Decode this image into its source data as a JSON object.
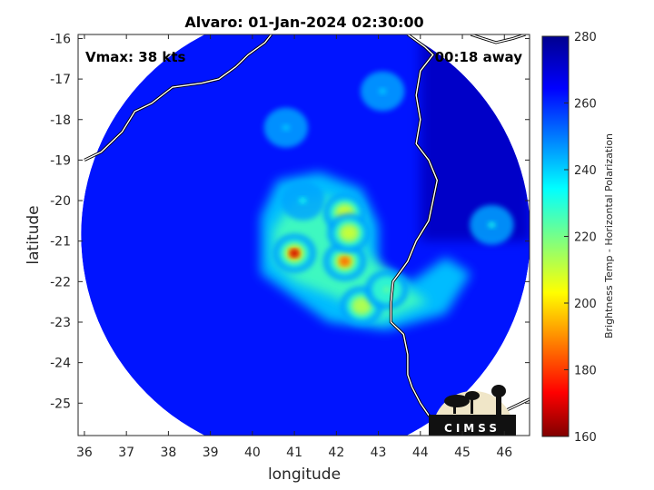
{
  "chart_data": {
    "type": "heatmap",
    "title": "Alvaro: 01-Jan-2024 02:30:00",
    "xlabel": "longitude",
    "ylabel": "latitude",
    "xlim": [
      35.85,
      46.6
    ],
    "ylim": [
      -25.8,
      -15.9
    ],
    "x_ticks": [
      36,
      37,
      38,
      39,
      40,
      41,
      42,
      43,
      44,
      45,
      46
    ],
    "y_ticks": [
      -16,
      -17,
      -18,
      -19,
      -20,
      -21,
      -22,
      -23,
      -24,
      -25
    ],
    "annotations": {
      "vmax": "Vmax: 38 kts",
      "time_offset": "00:18 away"
    },
    "colorbar": {
      "label": "Brightness Temp - Horizontal Polarization",
      "range": [
        160,
        280
      ],
      "ticks": [
        160,
        180,
        200,
        220,
        240,
        260,
        280
      ],
      "colormap": "jet"
    },
    "swath": {
      "center_lon": 41.27,
      "center_lat": -20.85,
      "radius_deg": 5.35
    },
    "features": [
      {
        "name": "background",
        "value": 262
      },
      {
        "lon": 41.0,
        "lat": -21.3,
        "value": 166
      },
      {
        "lon": 42.2,
        "lat": -21.5,
        "value": 185
      },
      {
        "lon": 42.2,
        "lat": -20.3,
        "value": 205
      },
      {
        "lon": 42.3,
        "lat": -20.8,
        "value": 208
      },
      {
        "lon": 42.6,
        "lat": -22.6,
        "value": 212
      },
      {
        "lon": 43.2,
        "lat": -22.2,
        "value": 222
      },
      {
        "lon": 41.2,
        "lat": -20.0,
        "value": 232
      },
      {
        "lon": 45.7,
        "lat": -20.6,
        "value": 232
      },
      {
        "lon": 43.1,
        "lat": -17.3,
        "value": 240
      },
      {
        "lon": 40.8,
        "lat": -18.2,
        "value": 240
      }
    ],
    "coastline_africa": [
      [
        36.0,
        -19.0
      ],
      [
        36.4,
        -18.8
      ],
      [
        36.9,
        -18.3
      ],
      [
        37.2,
        -17.8
      ],
      [
        37.6,
        -17.6
      ],
      [
        38.1,
        -17.2
      ],
      [
        38.8,
        -17.1
      ],
      [
        39.2,
        -17.0
      ],
      [
        39.6,
        -16.7
      ],
      [
        39.9,
        -16.4
      ],
      [
        40.3,
        -16.1
      ],
      [
        40.45,
        -15.9
      ]
    ],
    "coastline_madagascar": [
      [
        43.7,
        -15.9
      ],
      [
        44.1,
        -16.2
      ],
      [
        44.3,
        -16.4
      ],
      [
        44.0,
        -16.8
      ],
      [
        43.9,
        -17.4
      ],
      [
        44.0,
        -18.0
      ],
      [
        43.9,
        -18.6
      ],
      [
        44.2,
        -19.0
      ],
      [
        44.4,
        -19.5
      ],
      [
        44.3,
        -20.0
      ],
      [
        44.2,
        -20.5
      ],
      [
        43.9,
        -21.0
      ],
      [
        43.7,
        -21.5
      ],
      [
        43.35,
        -22.0
      ],
      [
        43.3,
        -22.5
      ],
      [
        43.3,
        -23.0
      ],
      [
        43.6,
        -23.3
      ],
      [
        43.7,
        -23.8
      ],
      [
        43.7,
        -24.3
      ],
      [
        43.8,
        -24.6
      ],
      [
        44.0,
        -25.0
      ],
      [
        44.2,
        -25.3
      ],
      [
        44.6,
        -25.5
      ],
      [
        45.0,
        -25.55
      ],
      [
        45.5,
        -25.5
      ],
      [
        46.0,
        -25.2
      ],
      [
        46.6,
        -24.9
      ]
    ],
    "coastline_ne_fragment": [
      [
        45.2,
        -15.9
      ],
      [
        45.5,
        -16.0
      ],
      [
        45.8,
        -16.1
      ],
      [
        46.2,
        -16.0
      ],
      [
        46.5,
        -15.9
      ]
    ]
  },
  "logo": {
    "text": "CIMSS"
  }
}
